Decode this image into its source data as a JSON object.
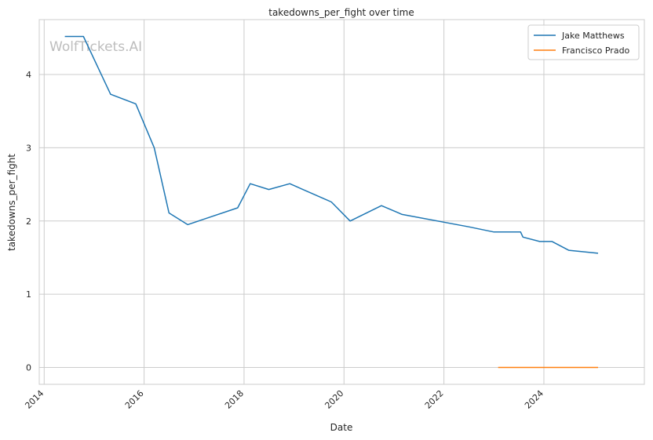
{
  "chart_data": {
    "type": "line",
    "title": "takedowns_per_fight over time",
    "xlabel": "Date",
    "ylabel": "takedowns_per_fight",
    "watermark": "WolfTickets.AI",
    "x_ticks": [
      "2014",
      "2016",
      "2018",
      "2020",
      "2022",
      "2024"
    ],
    "y_ticks": [
      "0",
      "1",
      "2",
      "3",
      "4"
    ],
    "xlim": [
      "2013-11-26",
      "2026-01-05"
    ],
    "ylim": [
      -0.23,
      4.75
    ],
    "grid": true,
    "legend_position": "top-right",
    "series": [
      {
        "name": "Jake Matthews",
        "color": "#1f77b4",
        "points": [
          [
            "2014-06-01",
            4.52
          ],
          [
            "2014-10-15",
            4.52
          ],
          [
            "2015-05-01",
            3.73
          ],
          [
            "2015-11-01",
            3.6
          ],
          [
            "2016-03-15",
            3.0
          ],
          [
            "2016-07-01",
            2.11
          ],
          [
            "2016-11-15",
            1.95
          ],
          [
            "2017-11-15",
            2.18
          ],
          [
            "2018-02-15",
            2.51
          ],
          [
            "2018-07-01",
            2.43
          ],
          [
            "2018-12-01",
            2.51
          ],
          [
            "2019-10-01",
            2.26
          ],
          [
            "2020-02-15",
            2.0
          ],
          [
            "2020-10-01",
            2.21
          ],
          [
            "2021-03-01",
            2.09
          ],
          [
            "2022-07-01",
            1.92
          ],
          [
            "2023-01-01",
            1.85
          ],
          [
            "2023-07-15",
            1.85
          ],
          [
            "2023-08-01",
            1.78
          ],
          [
            "2023-12-01",
            1.72
          ],
          [
            "2024-03-01",
            1.72
          ],
          [
            "2024-07-01",
            1.6
          ],
          [
            "2025-02-01",
            1.56
          ]
        ]
      },
      {
        "name": "Francisco Prado",
        "color": "#ff7f0e",
        "points": [
          [
            "2023-02-01",
            0.0
          ],
          [
            "2025-02-01",
            0.0
          ]
        ]
      }
    ]
  }
}
